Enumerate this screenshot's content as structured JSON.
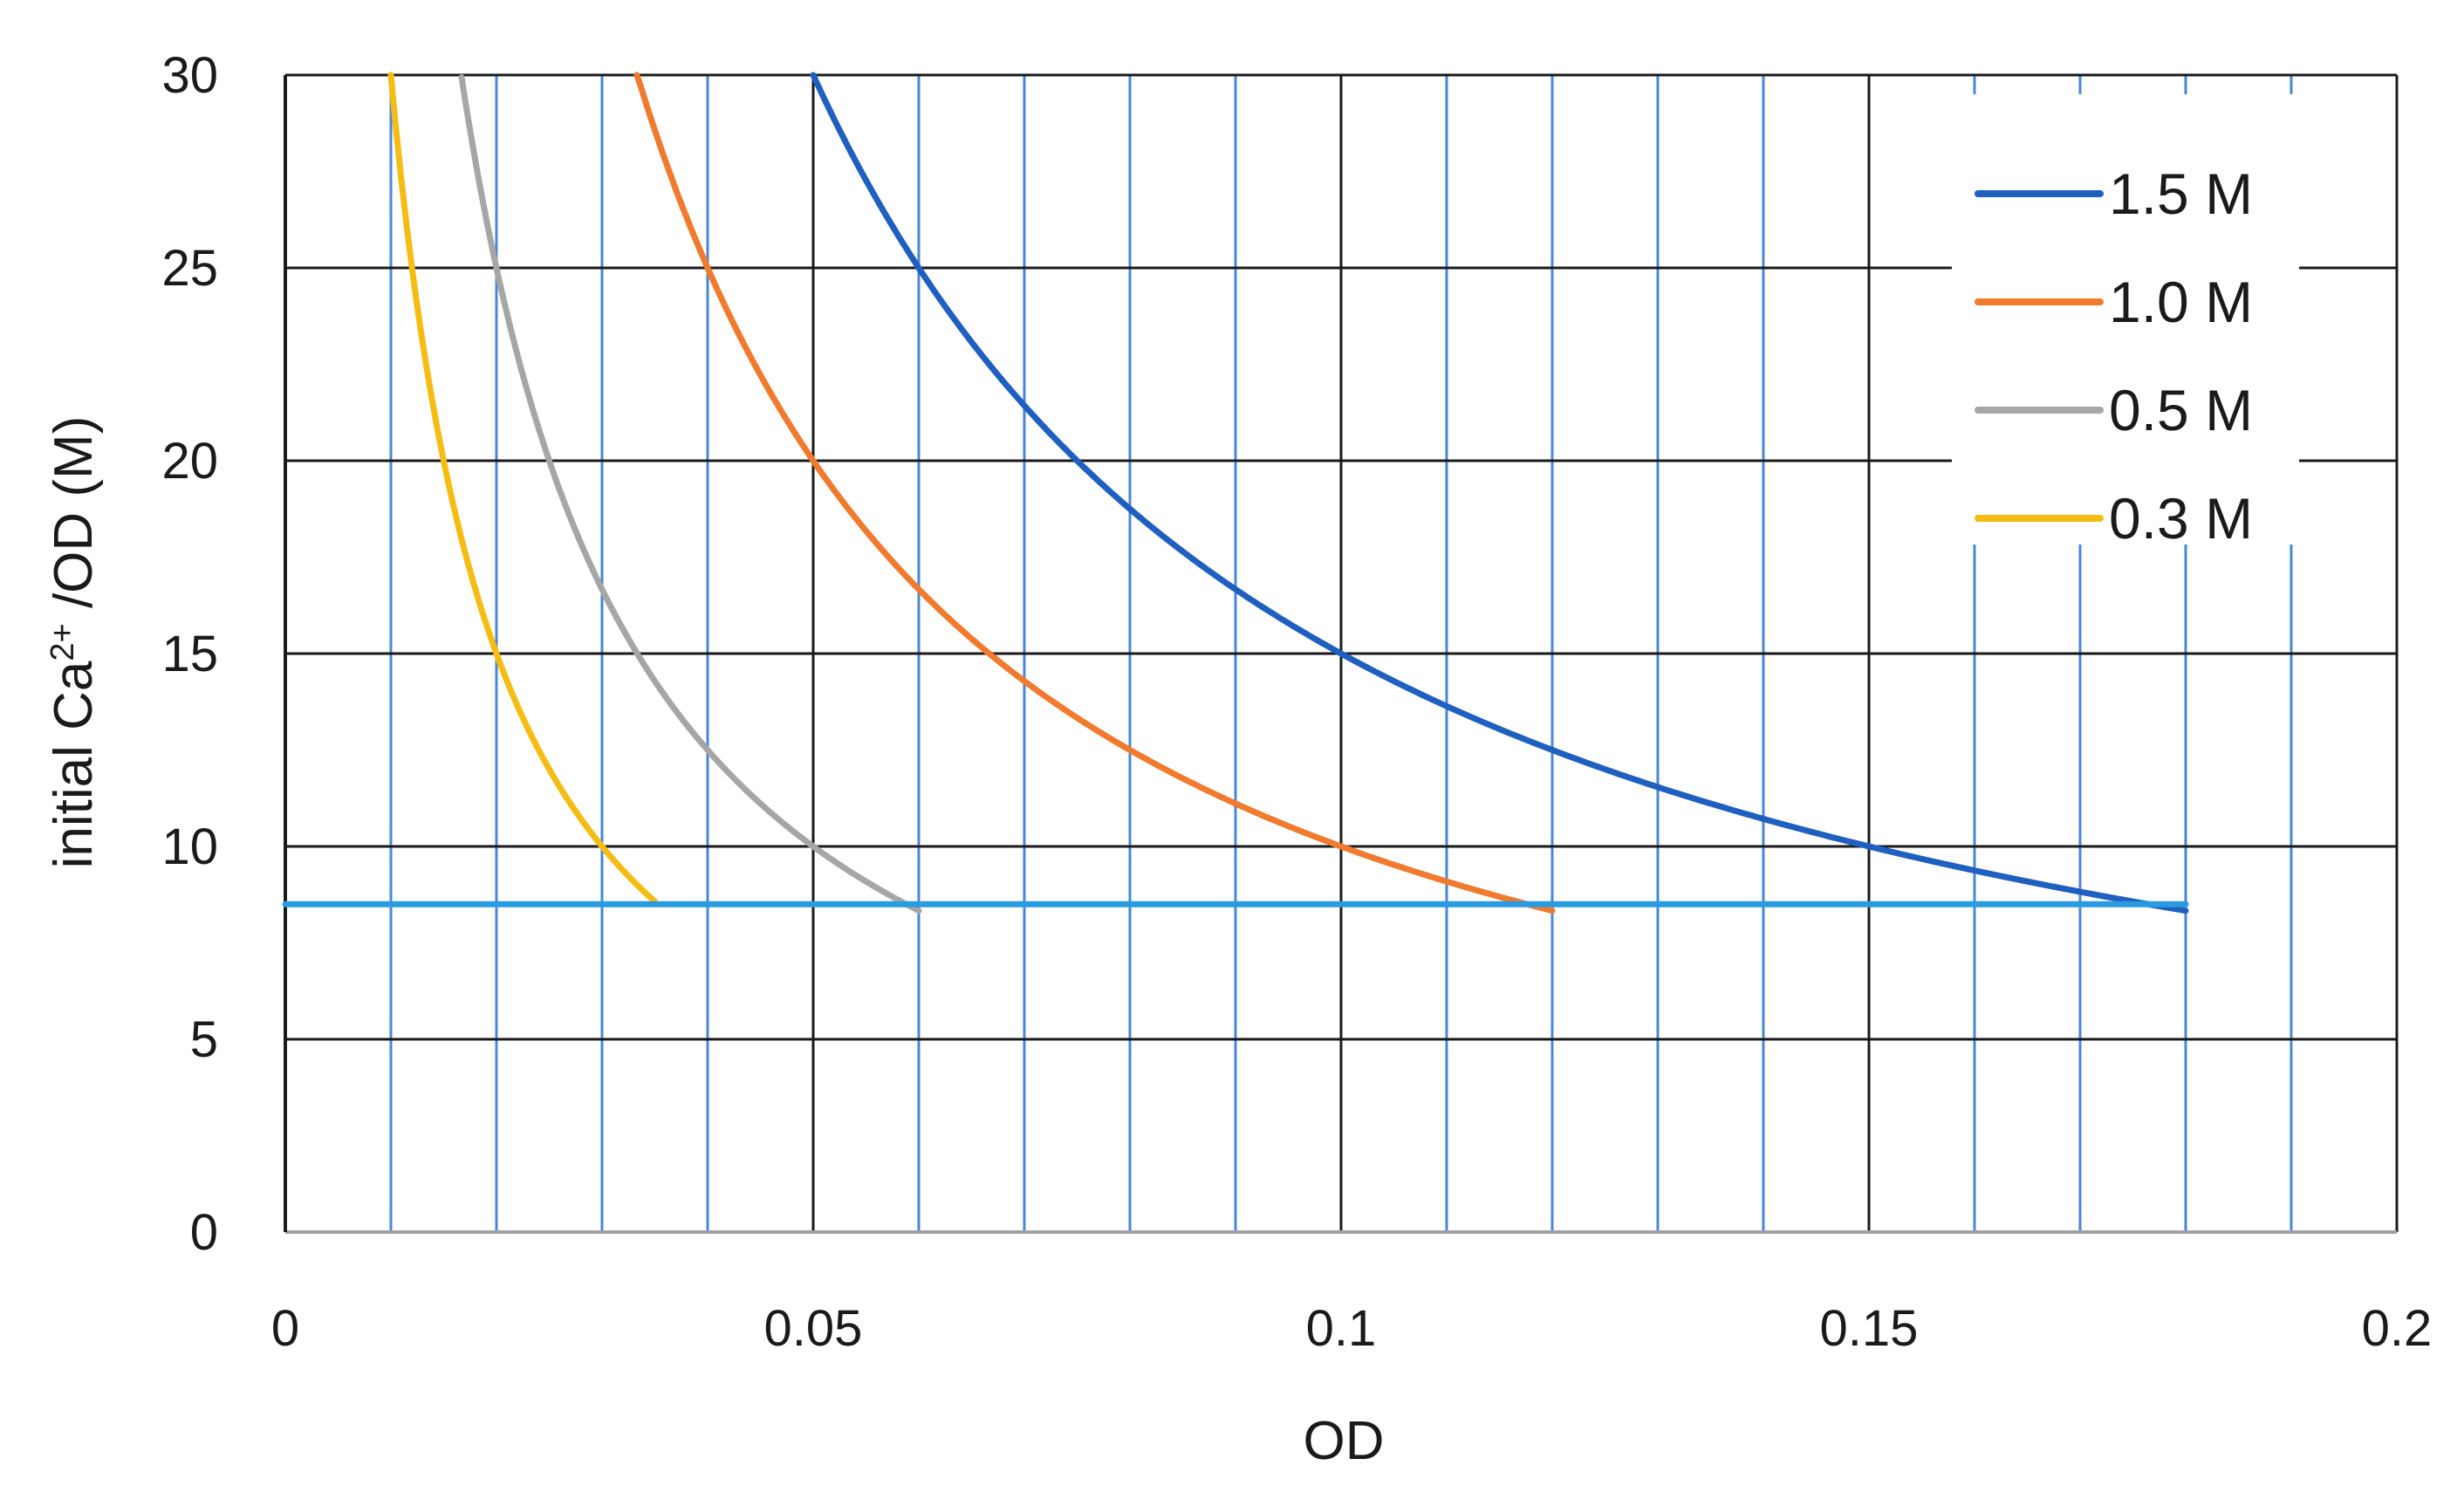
{
  "chart_data": {
    "type": "line",
    "xlabel": "OD",
    "ylabel": "initial Ca",
    "ylabel_sup": "2+",
    "ylabel_tail": " /OD (M)",
    "xlim": [
      0,
      0.2
    ],
    "ylim": [
      0,
      30
    ],
    "x_ticks": [
      0,
      0.05,
      0.1,
      0.15,
      0.2
    ],
    "x_tick_labels": [
      "0",
      "0.05",
      "0.1",
      "0.15",
      "0.2"
    ],
    "y_ticks": [
      0,
      5,
      10,
      15,
      20,
      25,
      30
    ],
    "y_tick_labels": [
      "0",
      "5",
      "10",
      "15",
      "20",
      "25",
      "30"
    ],
    "x_minor_step": 0.01,
    "grid": true,
    "legend_position": "top-right",
    "series": [
      {
        "name": "1.5 M",
        "concentration": 1.5,
        "color": "#1f5fbf",
        "x_start": 0.05,
        "x_end": 0.18
      },
      {
        "name": "1.0 M",
        "concentration": 1.0,
        "color": "#f07a2e",
        "x_start": 0.0333,
        "x_end": 0.12
      },
      {
        "name": "0.5 M",
        "concentration": 0.5,
        "color": "#a6a6a6",
        "x_start": 0.0167,
        "x_end": 0.06
      },
      {
        "name": "0.3 M",
        "concentration": 0.3,
        "color": "#f5bd14",
        "x_start": 0.01,
        "x_end": 0.035
      }
    ],
    "reference_line": {
      "y": 8.5,
      "x_start": 0,
      "x_end": 0.18,
      "color": "#2a9be0"
    },
    "colors": {
      "major_grid": "#1a1a1a",
      "minor_grid": "#4a86d8",
      "axis": "#a0a0a0"
    }
  }
}
